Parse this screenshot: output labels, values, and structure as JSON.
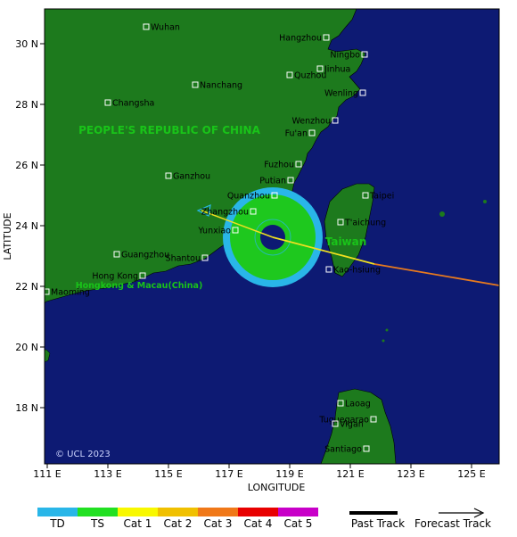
{
  "map": {
    "axis_x_title": "LONGITUDE",
    "axis_y_title": "LATITUDE",
    "copyright": "© UCL 2023",
    "colors": {
      "ocean": "#0d1a73",
      "land": "#1d7a1d",
      "border": "#000000"
    },
    "lon_ticks": [
      "111 E",
      "113 E",
      "115 E",
      "117 E",
      "119 E",
      "121 E",
      "123 E",
      "125 E"
    ],
    "lat_ticks": [
      "30 N",
      "28 N",
      "26 N",
      "24 N",
      "22 N",
      "20 N",
      "18 N"
    ],
    "regions": [
      {
        "id": "prc",
        "label": "PEOPLE'S REPUBLIC OF CHINA"
      },
      {
        "id": "hk",
        "label": "Hongkong & Macau(China)"
      },
      {
        "id": "tw",
        "label": "Taiwan"
      }
    ],
    "cities": [
      "Wuhan",
      "Hangzhou",
      "Ningbo",
      "Jinhua",
      "Quzhou",
      "Nanchang",
      "Changsha",
      "Wenling",
      "Wenzhou",
      "Fu'an",
      "Fuzhou",
      "Ganzhou",
      "Putian",
      "Quanzhou",
      "Taipei",
      "Zhangzhou",
      "T'aichung",
      "Yunxiao",
      "Guangzhou",
      "Shantou",
      "Kao-hsiung",
      "Hong Kong",
      "Maoming",
      "Laoag",
      "Tuguegarao",
      "Vigan",
      "Santiago"
    ]
  },
  "storm": {
    "position": {
      "lon": 118.5,
      "lat": 23.5
    },
    "inner_circle_color": "#1ec81e",
    "outer_ring_color": "#29b6e8",
    "forecast_track_color_east": "#e87a1e",
    "forecast_track_color_west": "#f0e020"
  },
  "legend": {
    "categories": [
      {
        "label": "TD",
        "color": "#29b6e8"
      },
      {
        "label": "TS",
        "color": "#22e022"
      },
      {
        "label": "Cat 1",
        "color": "#f8f800"
      },
      {
        "label": "Cat 2",
        "color": "#f0c000"
      },
      {
        "label": "Cat 3",
        "color": "#f07818"
      },
      {
        "label": "Cat 4",
        "color": "#e80000"
      },
      {
        "label": "Cat 5",
        "color": "#c800c8"
      }
    ],
    "past_track_label": "Past Track",
    "forecast_track_label": "Forecast Track"
  }
}
